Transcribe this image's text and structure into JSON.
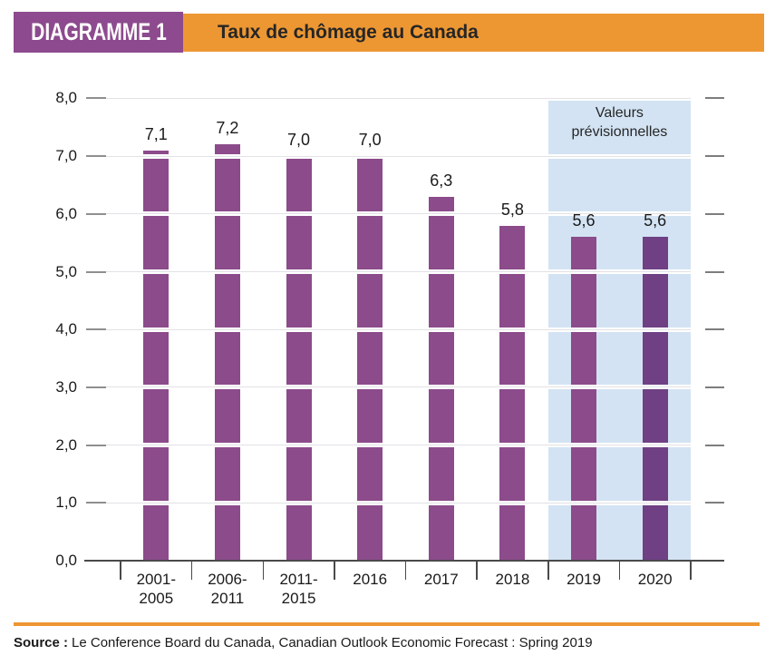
{
  "header": {
    "badge": "DIAGRAMME 1",
    "title": "Taux de chômage au Canada"
  },
  "colors": {
    "accent_orange": "#ED9733",
    "badge_purple": "#8D4A8E",
    "bar_purple": "#8C4B8B",
    "bar_purple_dark": "#6F4084",
    "forecast_blue": "#D3E3F3",
    "axis_dark": "#4a4a4a",
    "tick_gray": "#8f8f8f",
    "grid_gray": "#e2e2e6"
  },
  "chart_data": {
    "type": "bar",
    "title": "Taux de chômage au Canada",
    "categories": [
      "2001-2005",
      "2006-2011",
      "2011-2015",
      "2016",
      "2017",
      "2018",
      "2019",
      "2020"
    ],
    "category_lines": [
      [
        "2001-",
        "2005"
      ],
      [
        "2006-",
        "2011"
      ],
      [
        "2011-",
        "2015"
      ],
      [
        "2016"
      ],
      [
        "2017"
      ],
      [
        "2018"
      ],
      [
        "2019"
      ],
      [
        "2020"
      ]
    ],
    "values": [
      7.1,
      7.2,
      7.0,
      7.0,
      6.3,
      5.8,
      5.6,
      5.6
    ],
    "value_labels": [
      "7,1",
      "7,2",
      "7,0",
      "7,0",
      "6,3",
      "5,8",
      "5,6",
      "5,6"
    ],
    "ylim": [
      0,
      8
    ],
    "ytick_values": [
      0,
      1,
      2,
      3,
      4,
      5,
      6,
      7,
      8
    ],
    "ytick_labels": [
      "0,0",
      "1,0",
      "2,0",
      "3,0",
      "4,0",
      "5,0",
      "6,0",
      "7,0",
      "8,0"
    ],
    "grid": "horizontal",
    "legend": "none",
    "forecast_region": {
      "label_lines": [
        "Valeurs",
        "prévisionnelles"
      ],
      "start_category": "2019",
      "end_category": "2020"
    }
  },
  "footer": {
    "source_label": "Source :",
    "source_text": "Le Conference Board du Canada, Canadian Outlook Economic Forecast : Spring 2019"
  }
}
